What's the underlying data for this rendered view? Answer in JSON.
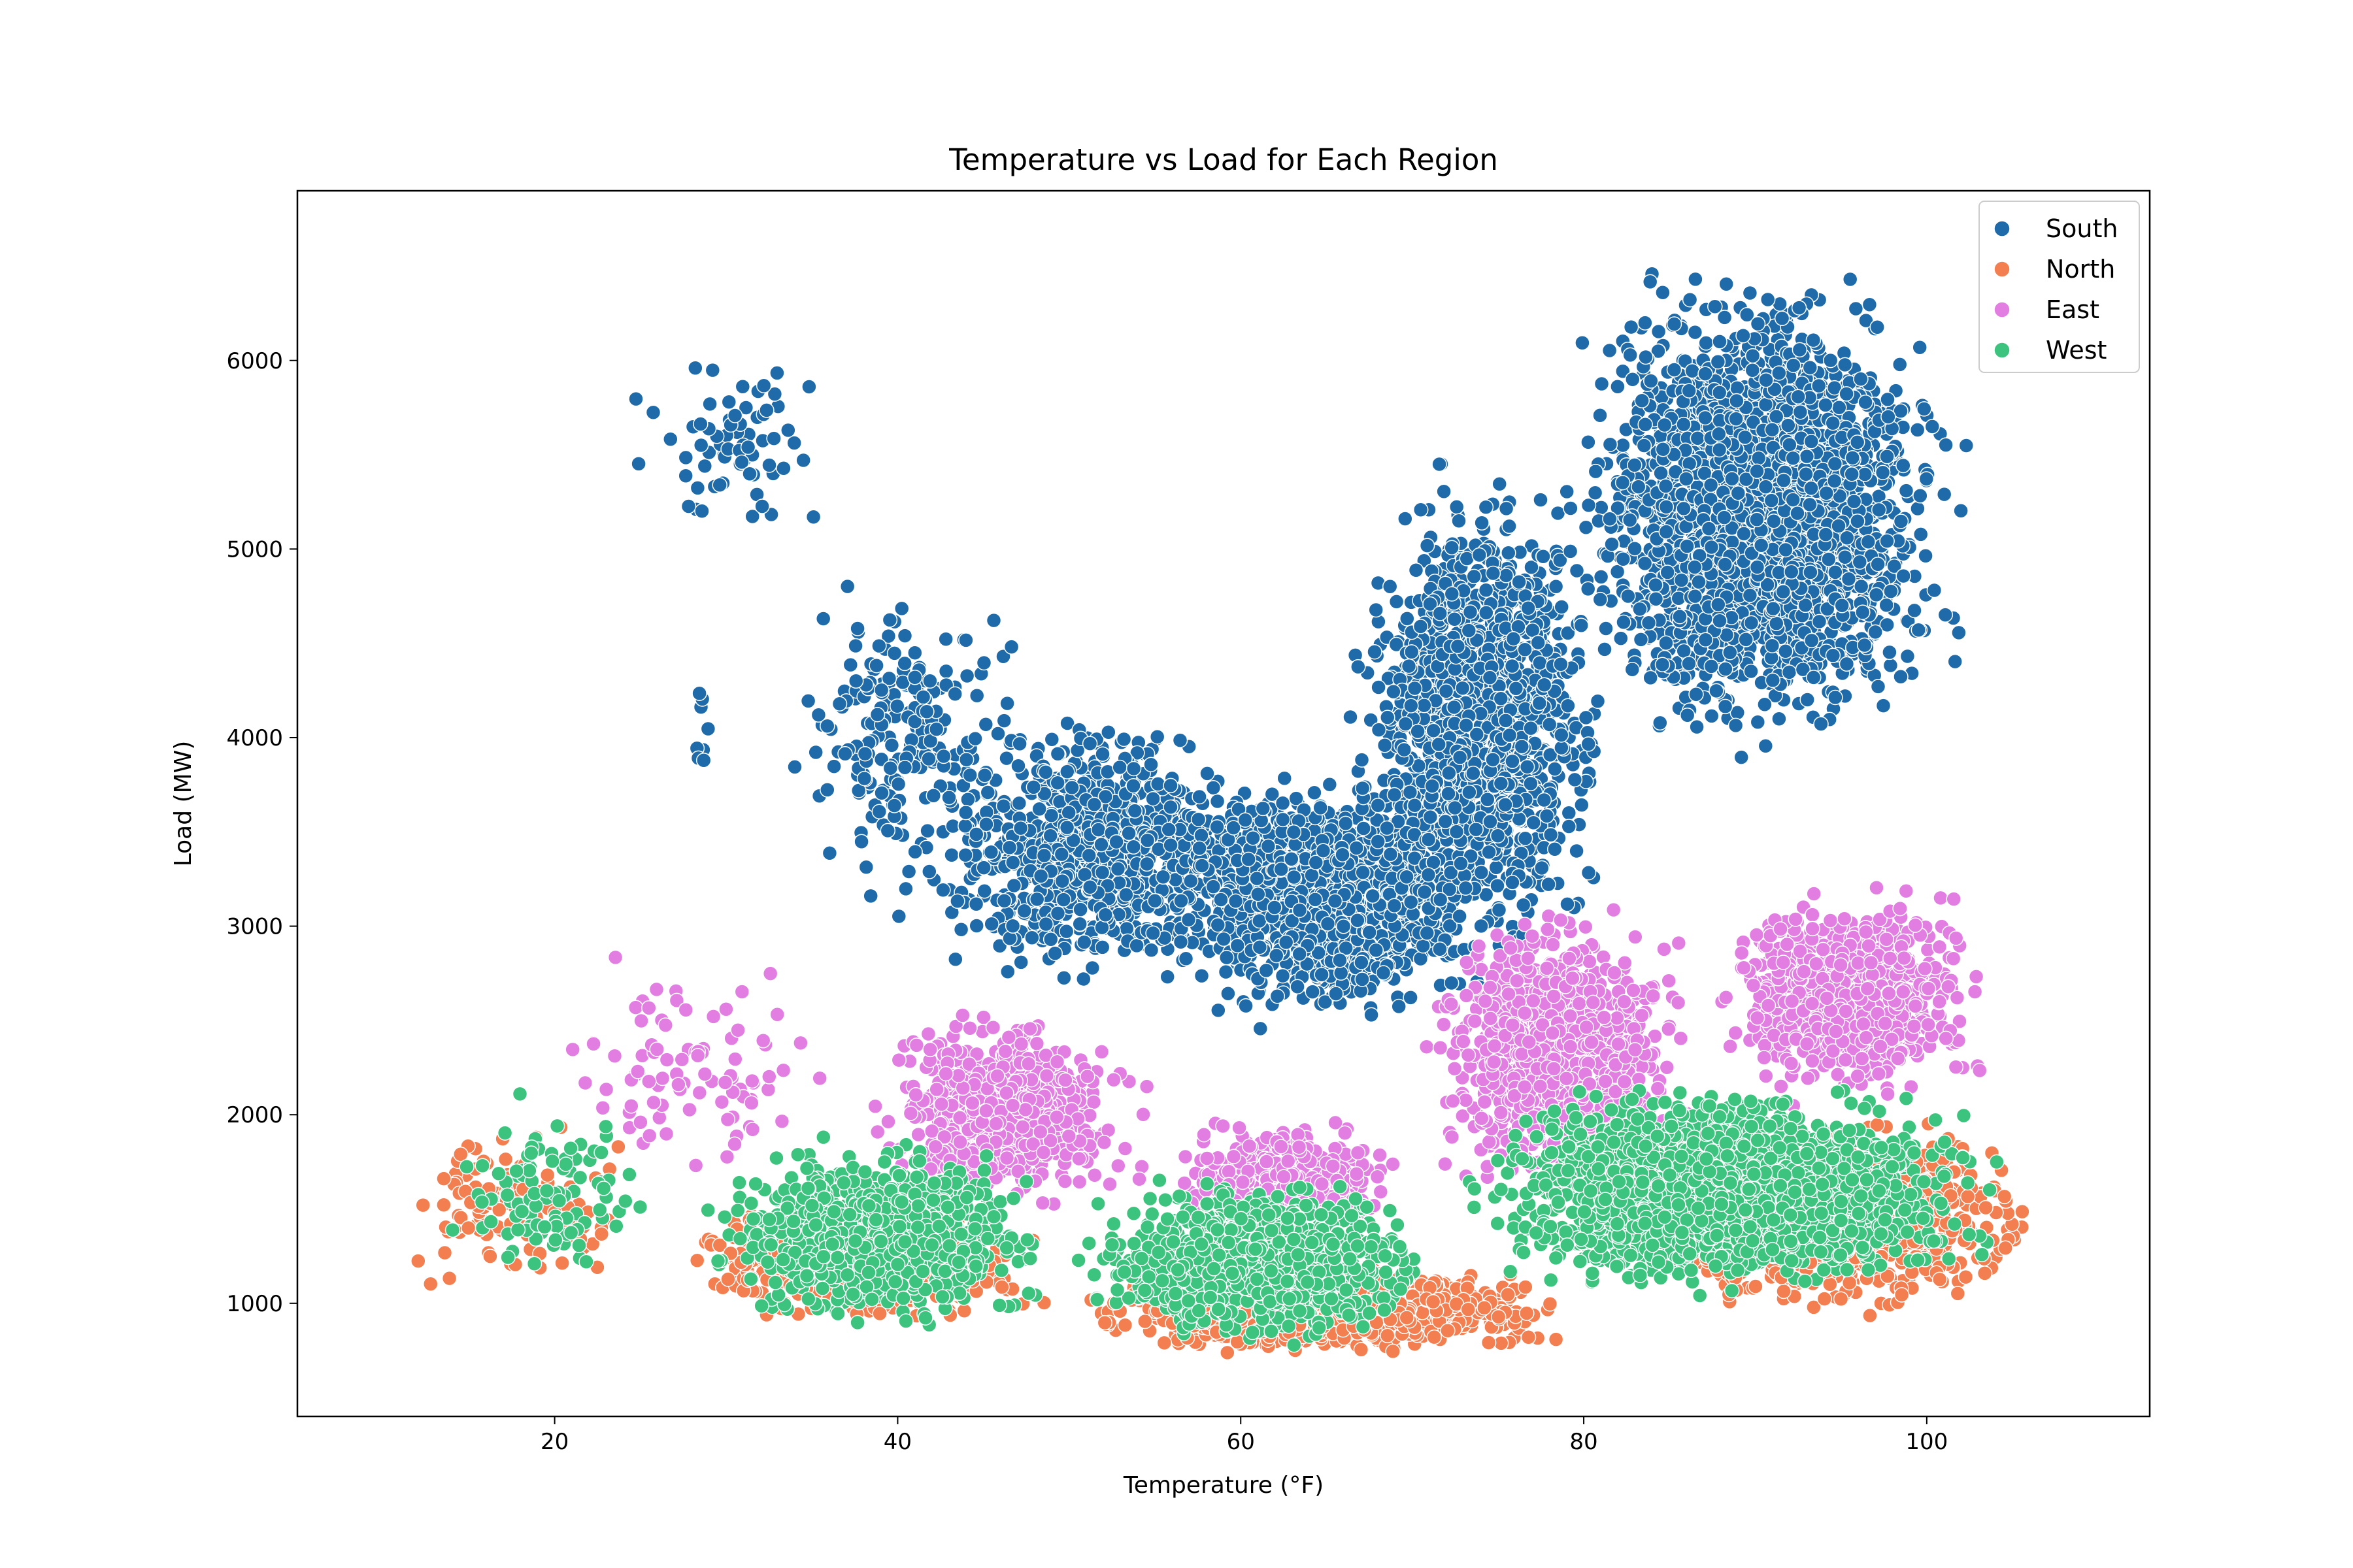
{
  "chart_data": {
    "type": "scatter",
    "title": "Temperature vs Load for Each Region",
    "xlabel": "Temperature (°F)",
    "ylabel": "Load (MW)",
    "xlim": [
      5,
      113
    ],
    "ylim": [
      400,
      6900
    ],
    "xticks": [
      20,
      40,
      60,
      80,
      100
    ],
    "yticks": [
      1000,
      2000,
      3000,
      4000,
      5000,
      6000
    ],
    "grid": false,
    "legend_position": "top-right",
    "series": [
      {
        "name": "South",
        "color": "#1f6aa8",
        "clusters": [
          {
            "x": [
              23,
              38
            ],
            "y": [
              5000,
              6100
            ],
            "n": 70
          },
          {
            "x": [
              28,
              29
            ],
            "y": [
              3450,
              4700
            ],
            "n": 8
          },
          {
            "x": [
              33,
              48
            ],
            "y": [
              3000,
              5000
            ],
            "n": 220
          },
          {
            "x": [
              41,
              62
            ],
            "y": [
              2600,
              4200
            ],
            "n": 900
          },
          {
            "x": [
              55,
              75
            ],
            "y": [
              2400,
              3900
            ],
            "n": 1300
          },
          {
            "x": [
              66,
              82
            ],
            "y": [
              2700,
              5500
            ],
            "n": 1500
          },
          {
            "x": [
              78,
              103
            ],
            "y": [
              3800,
              6600
            ],
            "n": 2500
          }
        ]
      },
      {
        "name": "North",
        "color": "#f37e4f",
        "clusters": [
          {
            "x": [
              10,
              25
            ],
            "y": [
              1000,
              2000
            ],
            "n": 120
          },
          {
            "x": [
              26,
              50
            ],
            "y": [
              850,
              1600
            ],
            "n": 600
          },
          {
            "x": [
              50,
              80
            ],
            "y": [
              720,
              1200
            ],
            "n": 1300
          },
          {
            "x": [
              80,
              108
            ],
            "y": [
              900,
              2050
            ],
            "n": 1300
          }
        ]
      },
      {
        "name": "East",
        "color": "#e27ee2",
        "clusters": [
          {
            "x": [
              19,
              38
            ],
            "y": [
              1600,
              2900
            ],
            "n": 90
          },
          {
            "x": [
              38,
              55
            ],
            "y": [
              1400,
              2600
            ],
            "n": 700
          },
          {
            "x": [
              55,
              70
            ],
            "y": [
              1300,
              2000
            ],
            "n": 500
          },
          {
            "x": [
              70,
              87
            ],
            "y": [
              1500,
              3200
            ],
            "n": 900
          },
          {
            "x": [
              87,
              104
            ],
            "y": [
              2000,
              3270
            ],
            "n": 900
          }
        ]
      },
      {
        "name": "West",
        "color": "#3cc47f",
        "clusters": [
          {
            "x": [
              13,
              27
            ],
            "y": [
              1000,
              2130
            ],
            "n": 100
          },
          {
            "x": [
              28,
              50
            ],
            "y": [
              830,
              1900
            ],
            "n": 900
          },
          {
            "x": [
              50,
              72
            ],
            "y": [
              750,
              1700
            ],
            "n": 1200
          },
          {
            "x": [
              72,
              105
            ],
            "y": [
              1000,
              2200
            ],
            "n": 2200
          }
        ]
      }
    ]
  }
}
